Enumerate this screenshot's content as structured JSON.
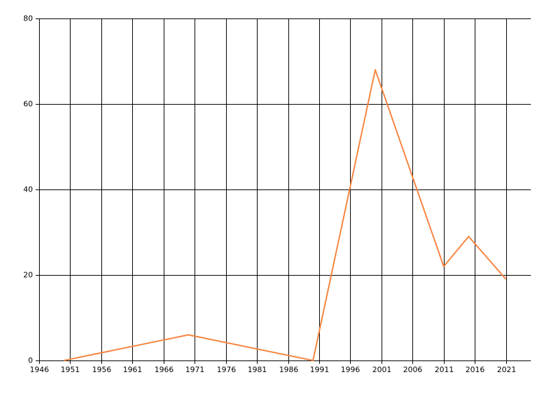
{
  "chart_data": {
    "type": "line",
    "x": [
      1950,
      1970,
      1990,
      2000,
      2011,
      2015,
      2021
    ],
    "series": [
      {
        "color": "#f7843f",
        "values": [
          0,
          6,
          0,
          68,
          22,
          29,
          19
        ]
      }
    ],
    "xlim": [
      1946,
      2025
    ],
    "xticks": [
      1946,
      1951,
      1956,
      1961,
      1966,
      1971,
      1976,
      1981,
      1986,
      1991,
      1996,
      2001,
      2006,
      2011,
      2016,
      2021
    ],
    "ylim": [
      0,
      80
    ],
    "yticks": [
      0,
      20,
      40,
      60,
      80
    ],
    "grid": true
  }
}
